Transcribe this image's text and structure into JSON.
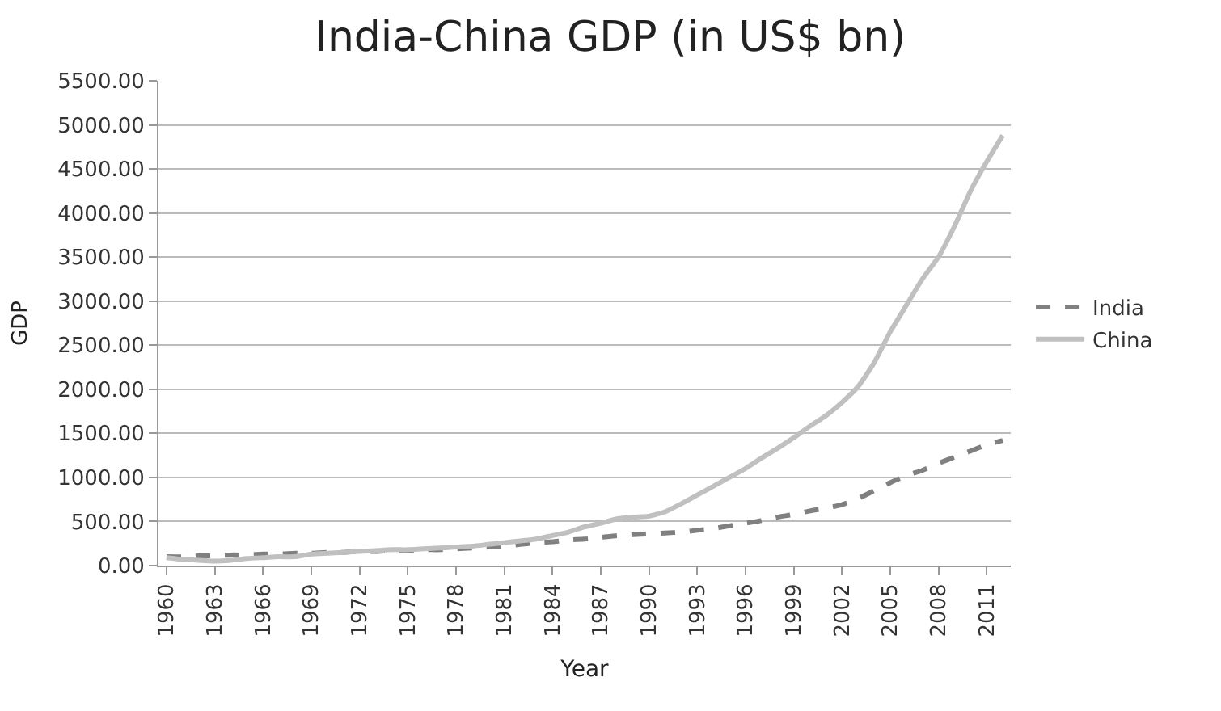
{
  "chart_data": {
    "type": "line",
    "title": "India-China GDP (in US$ bn)",
    "xlabel": "Year",
    "ylabel": "GDP",
    "categories": [
      "1960",
      null,
      null,
      "1963",
      null,
      null,
      "1966",
      null,
      null,
      "1969",
      null,
      null,
      "1972",
      null,
      null,
      "1975",
      null,
      null,
      "1978",
      null,
      null,
      "1981",
      null,
      null,
      "1984",
      null,
      null,
      "1987",
      null,
      null,
      "1990",
      null,
      null,
      "1993",
      null,
      null,
      "1996",
      null,
      null,
      "1999",
      null,
      null,
      "2002",
      null,
      null,
      "2005",
      null,
      null,
      "2008",
      null,
      null,
      "2011",
      null
    ],
    "series": [
      {
        "name": "India",
        "color": "#808080",
        "line_style": "dashed",
        "values": [
          100,
          100,
          110,
          110,
          120,
          120,
          130,
          130,
          140,
          140,
          150,
          150,
          160,
          160,
          170,
          170,
          180,
          180,
          190,
          200,
          210,
          220,
          240,
          260,
          270,
          290,
          300,
          320,
          340,
          350,
          360,
          370,
          380,
          400,
          420,
          450,
          480,
          510,
          550,
          580,
          620,
          650,
          690,
          760,
          850,
          940,
          1020,
          1080,
          1160,
          1230,
          1300,
          1370,
          1420
        ]
      },
      {
        "name": "China",
        "color": "#c0c0c0",
        "line_style": "solid",
        "values": [
          90,
          70,
          60,
          50,
          60,
          80,
          90,
          100,
          100,
          130,
          140,
          150,
          160,
          170,
          180,
          180,
          190,
          200,
          210,
          220,
          240,
          260,
          280,
          300,
          340,
          380,
          440,
          480,
          530,
          550,
          560,
          610,
          700,
          800,
          900,
          1000,
          1100,
          1220,
          1330,
          1450,
          1580,
          1700,
          1850,
          2030,
          2300,
          2650,
          2950,
          3250,
          3500,
          3850,
          4250,
          4580,
          4880
        ]
      }
    ],
    "ylim": [
      0,
      5500
    ],
    "yticks": [
      {
        "value": 0,
        "label": "0.00"
      },
      {
        "value": 500,
        "label": "500.00"
      },
      {
        "value": 1000,
        "label": "1000.00"
      },
      {
        "value": 1500,
        "label": "1500.00"
      },
      {
        "value": 2000,
        "label": "2000.00"
      },
      {
        "value": 2500,
        "label": "2500.00"
      },
      {
        "value": 3000,
        "label": "3000.00"
      },
      {
        "value": 3500,
        "label": "3500.00"
      },
      {
        "value": 4000,
        "label": "4000.00"
      },
      {
        "value": 4500,
        "label": "4500.00"
      },
      {
        "value": 5000,
        "label": "5000.00"
      },
      {
        "value": 5500,
        "label": "5500.00"
      }
    ],
    "grid": "y",
    "legend": "right",
    "marker": "none"
  }
}
